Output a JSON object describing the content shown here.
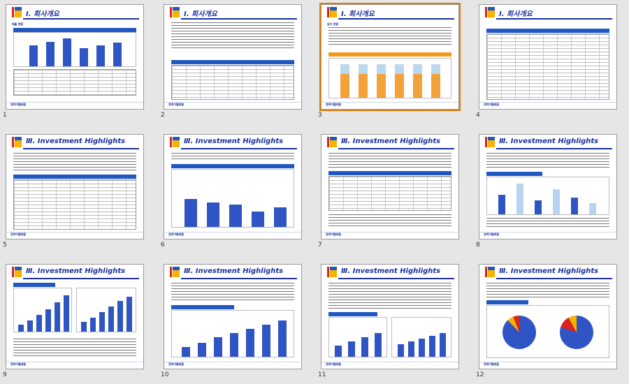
{
  "slides": [
    {
      "num": "1",
      "title": "Ⅰ. 회사개요",
      "footer": "엔케이텔레콤",
      "subtitle": "매출 현황"
    },
    {
      "num": "2",
      "title": "Ⅰ. 회사개요",
      "footer": "엔케이텔레콤"
    },
    {
      "num": "3",
      "title": "Ⅰ. 회사개요",
      "footer": "엔케이텔레콤",
      "subtitle": "원가 현황"
    },
    {
      "num": "4",
      "title": "Ⅰ. 회사개요",
      "footer": "엔케이텔레콤"
    },
    {
      "num": "5",
      "title": "Ⅲ. Investment Highlights",
      "footer": "엔케이텔레콤"
    },
    {
      "num": "6",
      "title": "Ⅲ. Investment Highlights",
      "footer": "엔케이텔레콤"
    },
    {
      "num": "7",
      "title": "Ⅲ. Investment Highlights",
      "footer": "엔케이텔레콤"
    },
    {
      "num": "8",
      "title": "Ⅲ. Investment Highlights",
      "footer": "엔케이텔레콤"
    },
    {
      "num": "9",
      "title": "Ⅲ. Investment Highlights",
      "footer": "엔케이텔레콤"
    },
    {
      "num": "10",
      "title": "Ⅲ. Investment Highlights",
      "footer": "엔케이텔레콤"
    },
    {
      "num": "11",
      "title": "Ⅲ. Investment Highlights",
      "footer": "엔케이텔레콤"
    },
    {
      "num": "12",
      "title": "Ⅲ. Investment Highlights",
      "footer": "엔케이텔레콤"
    }
  ],
  "selected_slide": "3",
  "colors": {
    "title": "#1c2f9e",
    "accent_red": "#d8241d",
    "accent_yellow": "#f6b400",
    "accent_blue": "#1f57c3",
    "selection": "#e07b00"
  }
}
